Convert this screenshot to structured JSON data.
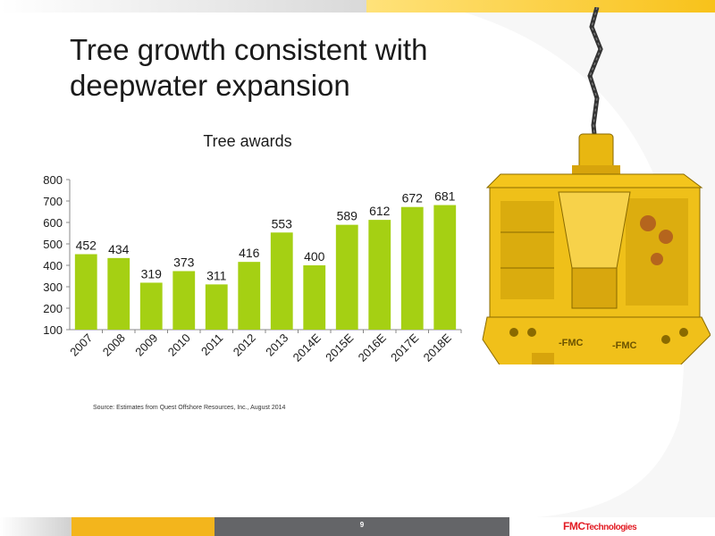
{
  "slide": {
    "title": "Tree growth consistent with deepwater expansion",
    "source": "Source:  Estimates from Quest Offshore Resources, Inc., August 2014",
    "page_number": "9",
    "logo_primary": "FMC",
    "logo_secondary": "Technologies"
  },
  "colors": {
    "bar": "#a5d013",
    "accent_yellow": "#f3b51c",
    "bottom_grey": "#646568",
    "logo_red": "#e21b23"
  },
  "chart_data": {
    "type": "bar",
    "title": "Tree awards",
    "xlabel": "",
    "ylabel": "",
    "categories": [
      "2007",
      "2008",
      "2009",
      "2010",
      "2011",
      "2012",
      "2013",
      "2014E",
      "2015E",
      "2016E",
      "2017E",
      "2018E"
    ],
    "values": [
      452,
      434,
      319,
      373,
      311,
      416,
      553,
      400,
      589,
      612,
      672,
      681
    ],
    "ylim": [
      100,
      800
    ],
    "yticks": [
      100,
      200,
      300,
      400,
      500,
      600,
      700,
      800
    ],
    "grid": false,
    "data_labels": true
  }
}
